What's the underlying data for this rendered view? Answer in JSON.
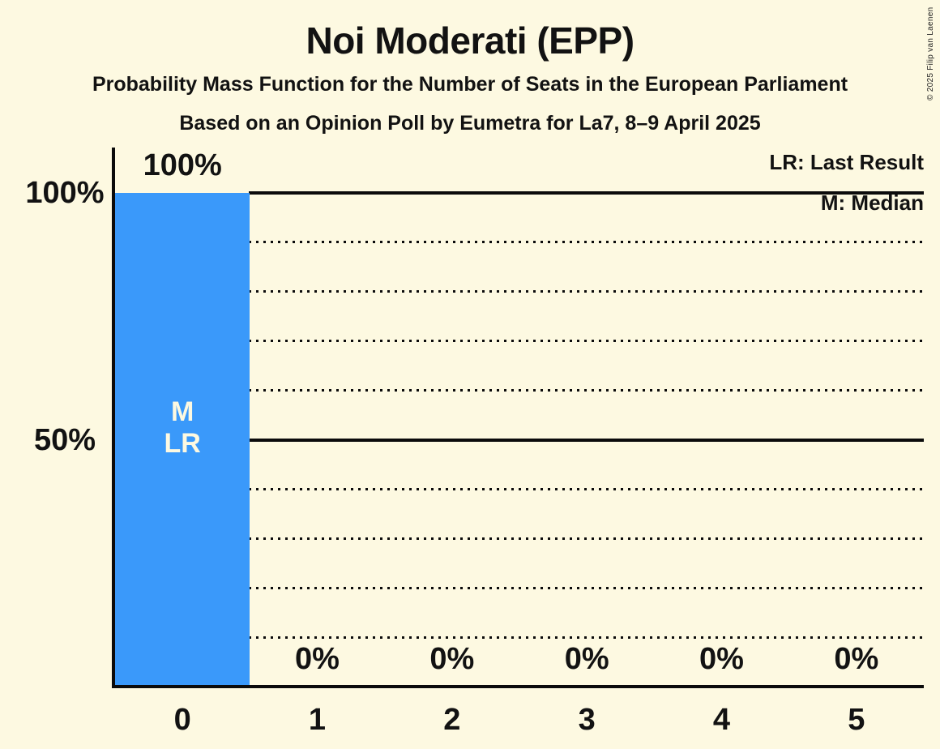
{
  "copyright": "© 2025 Filip van Laenen",
  "chart_data": {
    "type": "bar",
    "title": "Noi Moderati (EPP)",
    "subtitle1": "Probability Mass Function for the Number of Seats in the European Parliament",
    "subtitle2": "Based on an Opinion Poll by Eumetra for La7, 8–9 April 2025",
    "legend": [
      "LR: Last Result",
      "M: Median"
    ],
    "legend_abbreviations": {
      "LR": "Last Result",
      "M": "Median"
    },
    "categories": [
      "0",
      "1",
      "2",
      "3",
      "4",
      "5"
    ],
    "values": [
      100,
      0,
      0,
      0,
      0,
      0
    ],
    "bar_labels": [
      "100%",
      "0%",
      "0%",
      "0%",
      "0%",
      "0%"
    ],
    "ylim": [
      0,
      100
    ],
    "yticks": [
      {
        "value": 100,
        "label": "100%"
      },
      {
        "value": 50,
        "label": "50%"
      }
    ],
    "gridlines": {
      "solid_at": [
        100,
        50
      ],
      "dotted_at": [
        90,
        80,
        70,
        60,
        40,
        30,
        20,
        10
      ]
    },
    "legend_position": "top-right",
    "annotations": {
      "column": 0,
      "lines": [
        "M",
        "LR"
      ],
      "median_seats": 0,
      "last_result_seats": 0
    },
    "colors": {
      "bar": "#3A99FA",
      "background": "#FDF9E1",
      "text": "#121212",
      "bar_text": "#FDF9E1",
      "line": "#0b0b0b"
    }
  }
}
